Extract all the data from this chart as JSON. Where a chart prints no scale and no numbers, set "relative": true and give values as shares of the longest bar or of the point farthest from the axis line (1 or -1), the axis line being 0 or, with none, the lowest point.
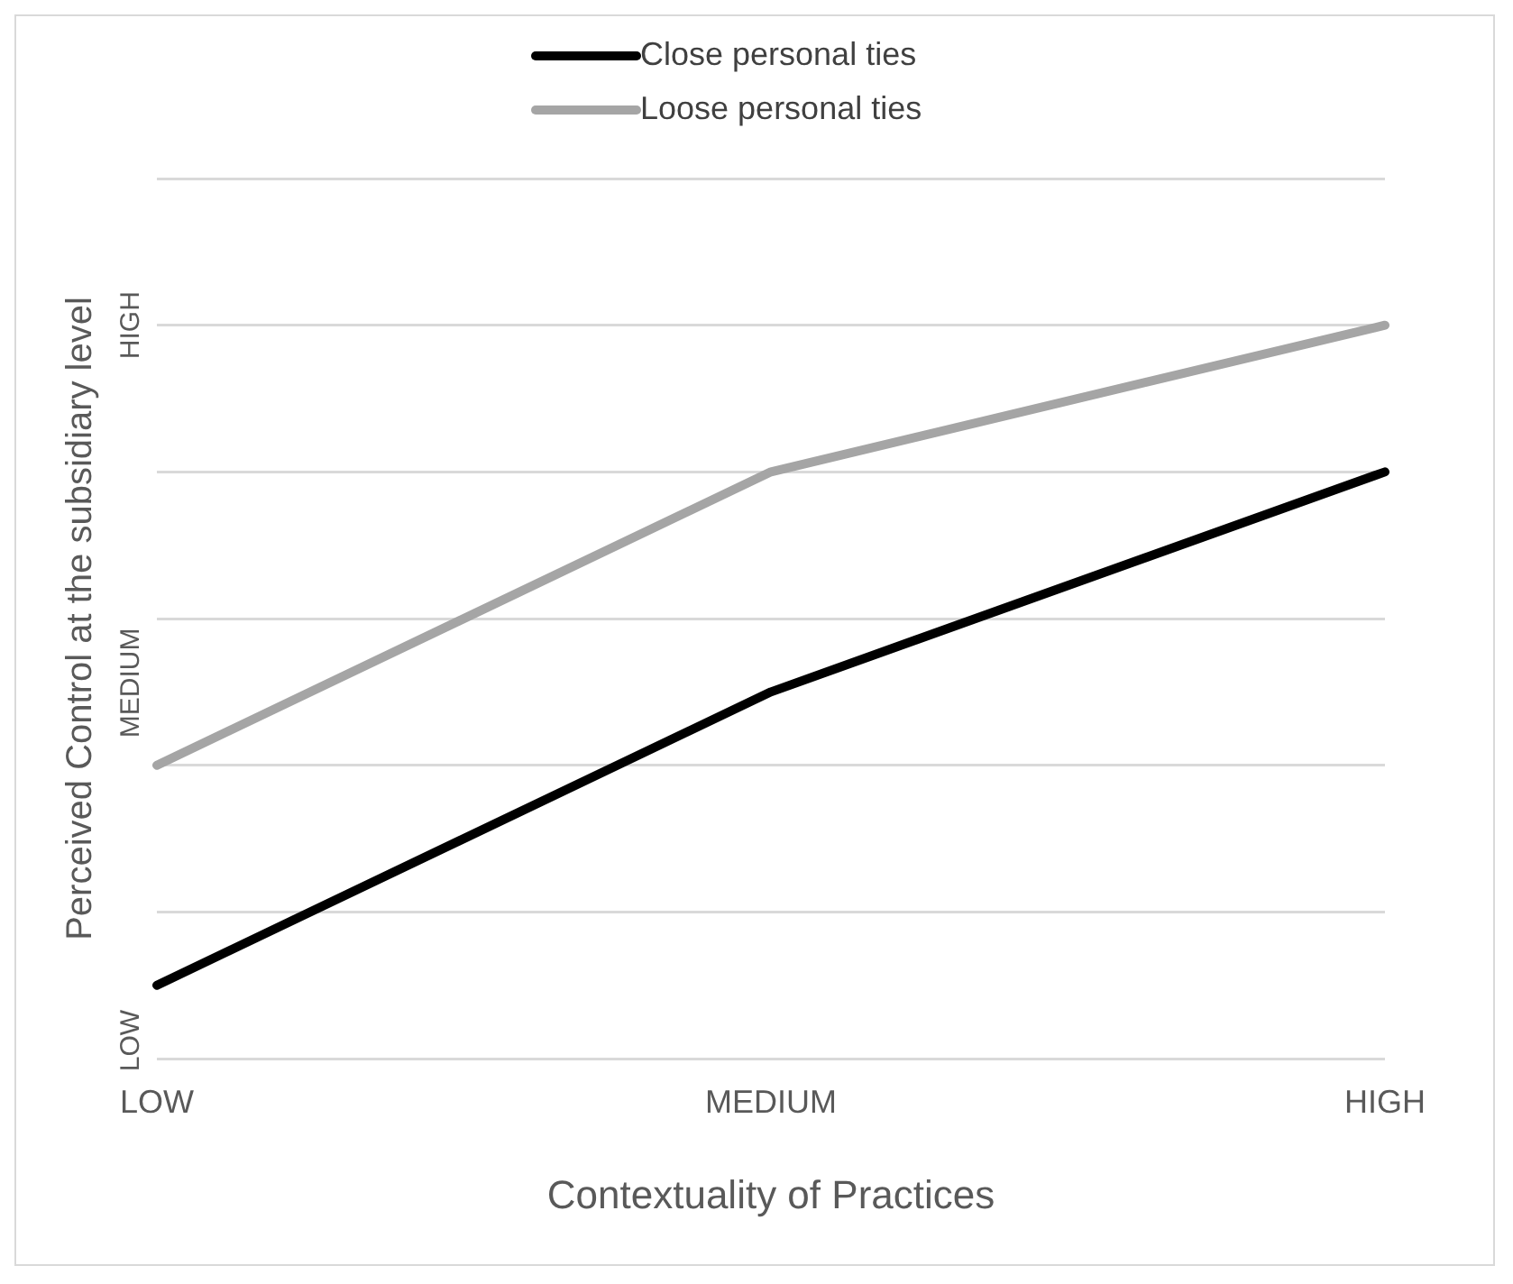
{
  "chart_data": {
    "type": "line",
    "xlabel": "Contextuality of Practices",
    "ylabel": "Perceived Control at the subsidiary level",
    "categories": [
      "LOW",
      "MEDIUM",
      "HIGH"
    ],
    "series": [
      {
        "name": "Close personal ties",
        "color": "#000000",
        "values": [
          0.1,
          0.5,
          0.8
        ]
      },
      {
        "name": "Loose personal ties",
        "color": "#a5a5a5",
        "values": [
          0.4,
          0.8,
          1
        ]
      }
    ],
    "relative": true,
    "annotations": [
      "LOW",
      "MEDIUM",
      "HIGH"
    ],
    "grid": "y",
    "legend": "top",
    "marker": "none",
    "line_style": "solid"
  }
}
